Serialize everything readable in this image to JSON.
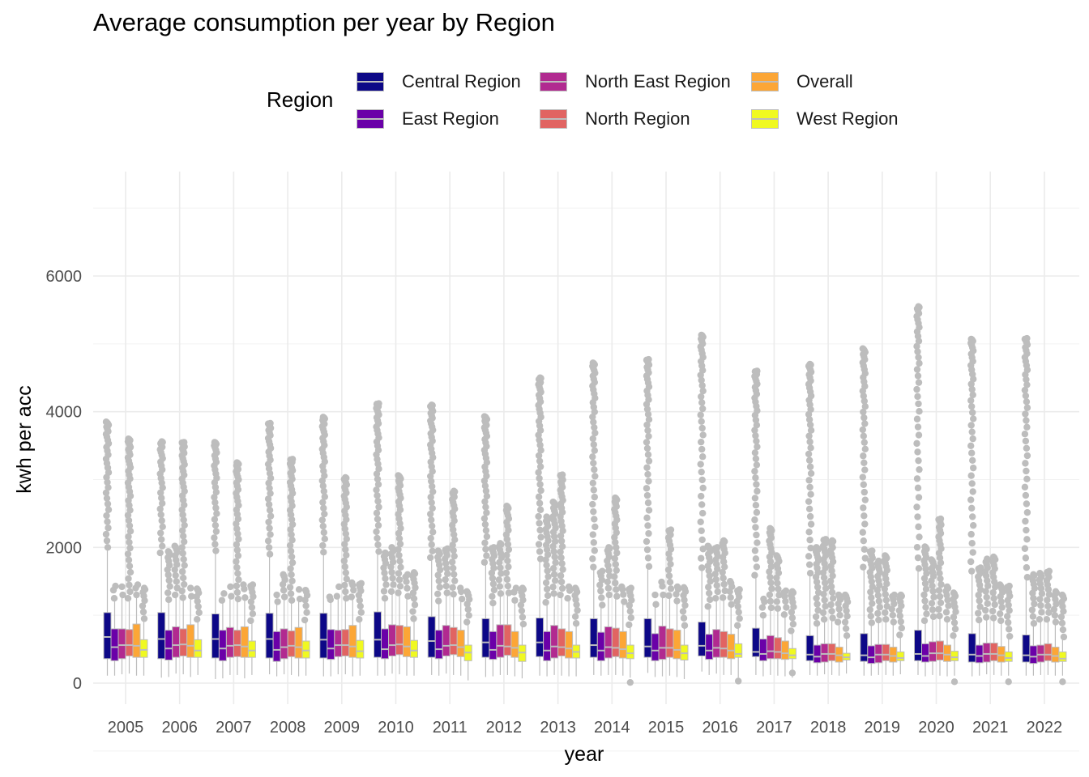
{
  "chart_data": {
    "type": "box",
    "title": "Average consumption per year by Region",
    "xlabel": "year",
    "ylabel": "kwh per acc",
    "legend_title": "Region",
    "legend_position": "top",
    "grid": true,
    "ylim": [
      -300,
      7250
    ],
    "y_ticks": [
      0,
      2000,
      4000,
      6000
    ],
    "categories": [
      "2005",
      "2006",
      "2007",
      "2008",
      "2009",
      "2010",
      "2011",
      "2012",
      "2013",
      "2014",
      "2015",
      "2016",
      "2017",
      "2018",
      "2019",
      "2020",
      "2021",
      "2022"
    ],
    "colors": {
      "Central Region": "#0d0887",
      "East Region": "#6a00a8",
      "North East Region": "#b12a90",
      "North Region": "#e16462",
      "Overall": "#fca636",
      "West Region": "#f0f921",
      "outline": "#bdbdbd"
    },
    "series": [
      {
        "name": "Central Region",
        "q1": [
          360,
          360,
          370,
          370,
          370,
          380,
          380,
          380,
          390,
          380,
          380,
          400,
          390,
          330,
          320,
          330,
          310,
          310
        ],
        "median": [
          680,
          650,
          650,
          650,
          640,
          640,
          620,
          600,
          600,
          560,
          540,
          550,
          460,
          420,
          410,
          430,
          420,
          410
        ],
        "q3": [
          1040,
          1040,
          1020,
          1030,
          1030,
          1050,
          980,
          950,
          960,
          950,
          950,
          900,
          810,
          700,
          730,
          780,
          730,
          710
        ],
        "whisker_low": [
          110,
          80,
          60,
          130,
          100,
          110,
          120,
          90,
          110,
          120,
          150,
          170,
          120,
          120,
          110,
          120,
          100,
          110
        ],
        "whisker_high": [
          2000,
          1920,
          1950,
          1900,
          1930,
          1940,
          1850,
          1780,
          1830,
          1710,
          1720,
          1700,
          1590,
          1620,
          1710,
          1690,
          1650,
          1560
        ],
        "outlier_max": [
          3850,
          3560,
          3550,
          3830,
          3920,
          4120,
          4100,
          3930,
          4500,
          4720,
          4770,
          5130,
          4600,
          4700,
          4930,
          5550,
          5070,
          5080
        ]
      },
      {
        "name": "East Region",
        "q1": [
          330,
          340,
          330,
          320,
          350,
          360,
          360,
          350,
          330,
          330,
          330,
          350,
          330,
          300,
          290,
          310,
          300,
          290
        ],
        "median": [
          530,
          510,
          510,
          490,
          510,
          500,
          500,
          490,
          480,
          480,
          480,
          480,
          430,
          390,
          380,
          400,
          400,
          390
        ],
        "q3": [
          800,
          780,
          780,
          760,
          790,
          800,
          780,
          760,
          760,
          750,
          730,
          720,
          650,
          560,
          550,
          580,
          560,
          550
        ],
        "whisker_low": [
          110,
          90,
          70,
          100,
          100,
          110,
          110,
          100,
          100,
          110,
          90,
          120,
          100,
          110,
          110,
          100,
          110,
          110
        ],
        "whisker_high": [
          1250,
          1230,
          1220,
          1200,
          1230,
          1250,
          1210,
          1180,
          1190,
          1150,
          1160,
          1130,
          1000,
          880,
          890,
          920,
          930,
          880
        ],
        "outlier_max": [
          1430,
          1940,
          1320,
          1300,
          1270,
          1920,
          1950,
          2000,
          2450,
          1650,
          1300,
          2020,
          1240,
          2000,
          1950,
          2010,
          1700,
          1600
        ]
      },
      {
        "name": "North East Region",
        "q1": [
          360,
          380,
          380,
          360,
          390,
          400,
          400,
          380,
          370,
          370,
          350,
          380,
          360,
          310,
          300,
          320,
          310,
          310
        ],
        "median": [
          560,
          560,
          550,
          530,
          560,
          560,
          550,
          550,
          540,
          530,
          520,
          520,
          470,
          430,
          420,
          440,
          430,
          420
        ],
        "q3": [
          800,
          830,
          820,
          800,
          780,
          860,
          850,
          860,
          850,
          830,
          840,
          790,
          700,
          580,
          570,
          610,
          590,
          560
        ],
        "whisker_low": [
          130,
          140,
          120,
          130,
          130,
          140,
          140,
          120,
          120,
          120,
          100,
          140,
          120,
          130,
          120,
          120,
          130,
          120
        ],
        "whisker_high": [
          1300,
          1300,
          1280,
          1270,
          1280,
          1350,
          1330,
          1320,
          1320,
          1300,
          1300,
          1250,
          1110,
          940,
          930,
          980,
          970,
          940
        ],
        "outlier_max": [
          1420,
          2020,
          1420,
          1600,
          1420,
          2000,
          1980,
          2060,
          2670,
          2000,
          1490,
          2000,
          2280,
          2120,
          1800,
          1820,
          1830,
          1620
        ]
      },
      {
        "name": "North Region",
        "q1": [
          400,
          400,
          390,
          390,
          400,
          420,
          420,
          410,
          400,
          390,
          380,
          380,
          360,
          330,
          330,
          340,
          330,
          330
        ],
        "median": [
          560,
          570,
          560,
          550,
          560,
          570,
          560,
          540,
          530,
          520,
          520,
          510,
          460,
          430,
          420,
          440,
          430,
          420
        ],
        "q3": [
          790,
          800,
          780,
          770,
          790,
          850,
          820,
          860,
          800,
          810,
          800,
          760,
          670,
          580,
          570,
          620,
          590,
          580
        ],
        "whisker_low": [
          140,
          130,
          120,
          120,
          130,
          130,
          120,
          120,
          110,
          120,
          110,
          120,
          110,
          120,
          120,
          110,
          120,
          120
        ],
        "whisker_high": [
          1250,
          1260,
          1240,
          1220,
          1250,
          1330,
          1310,
          1330,
          1300,
          1280,
          1290,
          1260,
          1100,
          960,
          940,
          990,
          960,
          940
        ],
        "outlier_max": [
          3600,
          3550,
          3250,
          3300,
          3030,
          3060,
          2830,
          2610,
          3070,
          2730,
          2260,
          2100,
          1880,
          2100,
          1880,
          2420,
          1860,
          1650
        ]
      },
      {
        "name": "Overall",
        "q1": [
          380,
          380,
          380,
          370,
          380,
          390,
          390,
          380,
          370,
          370,
          360,
          360,
          350,
          310,
          310,
          320,
          310,
          310
        ],
        "median": [
          550,
          550,
          540,
          530,
          540,
          540,
          530,
          520,
          510,
          500,
          490,
          480,
          440,
          410,
          400,
          420,
          410,
          400
        ],
        "q3": [
          870,
          860,
          830,
          820,
          850,
          830,
          780,
          760,
          760,
          760,
          780,
          720,
          620,
          530,
          530,
          560,
          540,
          530
        ],
        "whisker_low": [
          110,
          90,
          70,
          100,
          100,
          110,
          110,
          100,
          100,
          110,
          90,
          120,
          100,
          110,
          110,
          100,
          110,
          110
        ],
        "whisker_high": [
          1300,
          1280,
          1260,
          1240,
          1270,
          1280,
          1240,
          1220,
          1250,
          1200,
          1210,
          1160,
          1010,
          900,
          900,
          940,
          920,
          900
        ],
        "outlier_max": [
          1450,
          1400,
          1450,
          1380,
          1480,
          1600,
          1400,
          1400,
          1420,
          1420,
          1420,
          1500,
          1360,
          1300,
          1300,
          1420,
          1450,
          1350
        ]
      },
      {
        "name": "West Region",
        "q1": [
          380,
          380,
          380,
          370,
          370,
          380,
          330,
          320,
          370,
          360,
          340,
          380,
          360,
          340,
          330,
          330,
          320,
          320
        ],
        "median": [
          490,
          480,
          480,
          480,
          470,
          480,
          450,
          450,
          460,
          440,
          440,
          430,
          410,
          380,
          370,
          380,
          370,
          360
        ],
        "q3": [
          640,
          640,
          620,
          620,
          630,
          630,
          560,
          560,
          560,
          560,
          560,
          580,
          510,
          440,
          460,
          470,
          460,
          460
        ],
        "whisker_low": [
          110,
          120,
          120,
          110,
          110,
          110,
          40,
          70,
          100,
          80,
          60,
          80,
          80,
          140,
          130,
          110,
          110,
          110
        ],
        "whisker_high": [
          950,
          940,
          920,
          930,
          940,
          950,
          900,
          870,
          880,
          860,
          850,
          850,
          770,
          700,
          710,
          700,
          690,
          680
        ],
        "outlier_max": [
          1400,
          1390,
          1450,
          1370,
          1470,
          1630,
          1350,
          1400,
          1400,
          1400,
          1410,
          1380,
          1350,
          1300,
          1300,
          1330,
          1430,
          1300
        ],
        "outlier_min": [
          null,
          null,
          null,
          null,
          null,
          null,
          null,
          null,
          null,
          10,
          null,
          30,
          150,
          null,
          null,
          20,
          20,
          20
        ]
      }
    ]
  }
}
